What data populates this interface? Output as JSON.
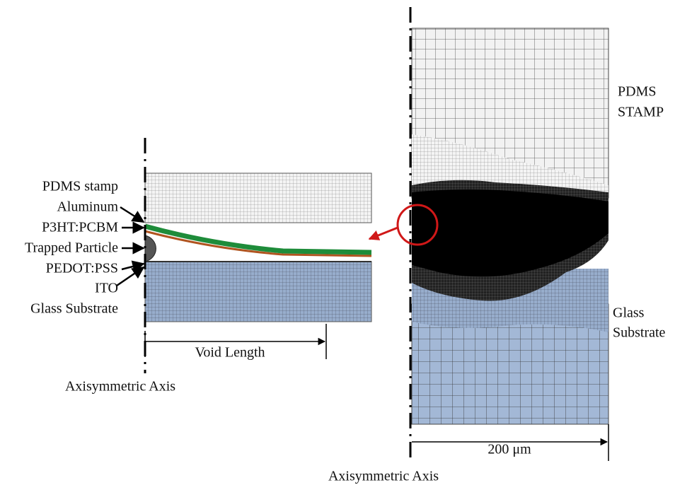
{
  "left": {
    "labels": [
      "PDMS stamp",
      "Aluminum",
      "P3HT:PCBM",
      "Trapped Particle",
      "PEDOT:PSS",
      "ITO",
      "Glass Substrate"
    ],
    "dimension": "Void Length",
    "axis": "Axisymmetric Axis"
  },
  "right": {
    "stamp": [
      "PDMS",
      "STAMP"
    ],
    "substrate": [
      "Glass",
      "Substrate"
    ],
    "scale": "200 μm",
    "axis": "Axisymmetric Axis"
  }
}
